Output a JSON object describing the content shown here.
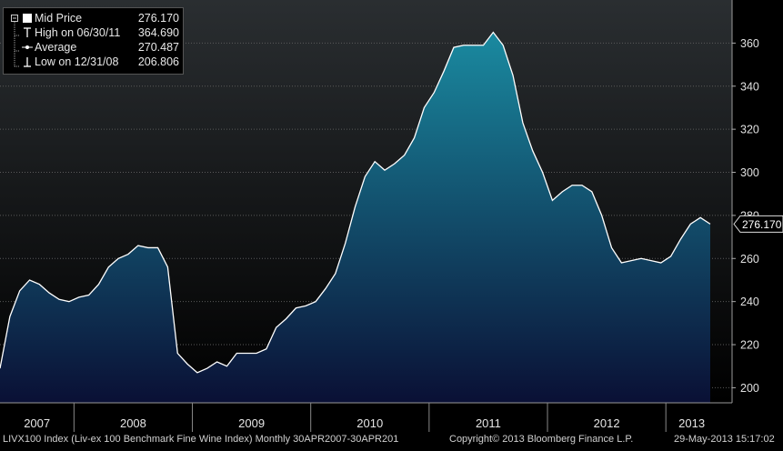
{
  "legend": {
    "items": [
      {
        "label": "Mid Price",
        "value": "276.170",
        "symbol": "filled-square-icon"
      },
      {
        "label": "High on 06/30/11",
        "value": "364.690",
        "symbol": "high-marker-icon"
      },
      {
        "label": "Average",
        "value": "270.487",
        "symbol": "average-marker-icon"
      },
      {
        "label": "Low on 12/31/08",
        "value": "206.806",
        "symbol": "low-marker-icon"
      }
    ]
  },
  "last_value_label": "276.170",
  "footer": {
    "index_desc": "LIVX100 Index (Liv-ex 100 Benchmark Fine Wine Index)  Monthly 30APR2007-30APR201",
    "copyright": "Copyright© 2013 Bloomberg Finance L.P.",
    "timestamp": "29-May-2013 15:17:02"
  },
  "colors": {
    "background_top": "#2a2e31",
    "background_bottom": "#000000",
    "area_top": "#1a8aa0",
    "area_bottom": "#0a1035",
    "line": "#ffffff"
  },
  "chart_data": {
    "type": "area",
    "title": "",
    "xlabel": "",
    "ylabel": "",
    "ylim": [
      193,
      380
    ],
    "yticks": [
      200,
      220,
      240,
      260,
      280,
      300,
      320,
      340,
      360
    ],
    "year_labels": [
      "2007",
      "2008",
      "2009",
      "2010",
      "2011",
      "2012",
      "2013"
    ],
    "grid": true,
    "legend_position": "top-left",
    "series": [
      {
        "values": [
          209,
          233,
          245,
          250,
          248,
          244,
          241,
          240,
          242,
          243,
          248,
          256,
          260,
          262,
          266,
          265,
          265,
          256,
          216,
          211,
          207,
          209,
          212,
          210,
          216,
          216,
          216,
          218,
          228,
          232,
          237,
          238,
          240,
          246,
          253,
          267,
          284,
          298,
          305,
          301,
          304,
          308,
          316,
          330,
          337,
          347,
          358,
          359,
          359,
          359,
          365,
          359,
          345,
          323,
          310,
          300,
          287,
          291,
          294,
          294,
          291,
          280,
          265,
          258,
          259,
          260,
          259,
          258,
          261,
          269,
          276,
          279,
          276
        ]
      }
    ]
  }
}
